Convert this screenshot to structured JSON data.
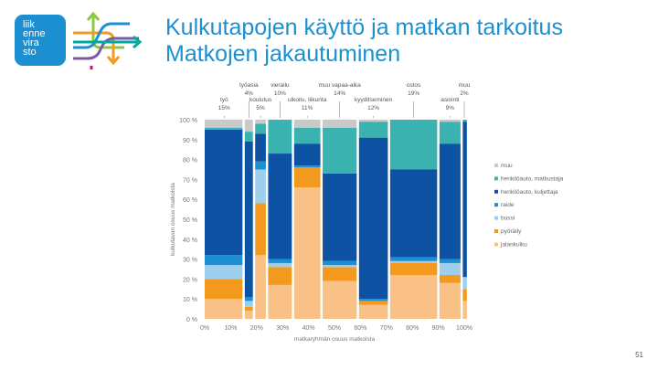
{
  "header": {
    "logo_lines": [
      "liik",
      "enne",
      "vira",
      "sto"
    ],
    "title_line1": "Kulkutapojen käyttö ja matkan tarkoitus",
    "title_line2": "Matkojen jakautuminen"
  },
  "page_number": "51",
  "colors": {
    "muu": "#c9c9c9",
    "henkiloauto_matkustaja": "#3ab3b0",
    "henkiloauto_kuljettaja": "#0d52a3",
    "raide": "#1b8fd1",
    "bussi": "#9ccfee",
    "polkupyora": "#f39a1e",
    "jalankulku": "#f9c185"
  },
  "chart_data": {
    "type": "marimekko",
    "title": "",
    "xlabel": "matkaryhmän osuus matkoista",
    "ylabel": "kulkutavan osuus matkoista",
    "x_ticks": [
      "0%",
      "10%",
      "20%",
      "30%",
      "40%",
      "50%",
      "60%",
      "70%",
      "80%",
      "90%",
      "100%"
    ],
    "y_ticks": [
      "0 %",
      "10 %",
      "20 %",
      "30 %",
      "40 %",
      "50 %",
      "60 %",
      "70 %",
      "80 %",
      "90 %",
      "100 %"
    ],
    "xlim": [
      0,
      100
    ],
    "ylim": [
      0,
      100
    ],
    "legend": [
      "muu",
      "henkilöauto, matkustaja",
      "henkilöauto, kuljettaja",
      "raide",
      "bussi",
      "pyöräily",
      "jalankulku"
    ],
    "series_order": [
      "jalankulku",
      "polkupyora",
      "bussi",
      "raide",
      "henkiloauto_kuljettaja",
      "henkiloauto_matkustaja",
      "muu"
    ],
    "categories": [
      {
        "label": "työ",
        "share_label": "15%",
        "label_row": "low",
        "width": 15,
        "values": {
          "jalankulku": 10,
          "polkupyora": 10,
          "bussi": 7,
          "raide": 5,
          "henkiloauto_kuljettaja": 63,
          "henkiloauto_matkustaja": 1,
          "muu": 4
        }
      },
      {
        "label": "työasia",
        "share_label": "4%",
        "label_row": "high",
        "width": 4,
        "values": {
          "jalankulku": 4,
          "polkupyora": 2,
          "bussi": 3,
          "raide": 2,
          "henkiloauto_kuljettaja": 78,
          "henkiloauto_matkustaja": 5,
          "muu": 6
        }
      },
      {
        "label": "koulutus",
        "share_label": "5%",
        "label_row": "low",
        "width": 5,
        "values": {
          "jalankulku": 32,
          "polkupyora": 26,
          "bussi": 17,
          "raide": 4,
          "henkiloauto_kuljettaja": 14,
          "henkiloauto_matkustaja": 5,
          "muu": 2
        }
      },
      {
        "label": "vierailu",
        "share_label": "10%",
        "label_row": "high",
        "width": 10,
        "values": {
          "jalankulku": 17,
          "polkupyora": 9,
          "bussi": 2,
          "raide": 2,
          "henkiloauto_kuljettaja": 53,
          "henkiloauto_matkustaja": 17,
          "muu": 0
        }
      },
      {
        "label": "ulkoilu, liikunta",
        "share_label": "11%",
        "label_row": "low",
        "width": 11,
        "values": {
          "jalankulku": 66,
          "polkupyora": 10,
          "bussi": 0,
          "raide": 1,
          "henkiloauto_kuljettaja": 11,
          "henkiloauto_matkustaja": 8,
          "muu": 4
        }
      },
      {
        "label": "muu vapaa-aika",
        "share_label": "14%",
        "label_row": "high",
        "width": 14,
        "values": {
          "jalankulku": 19,
          "polkupyora": 7,
          "bussi": 1,
          "raide": 2,
          "henkiloauto_kuljettaja": 44,
          "henkiloauto_matkustaja": 23,
          "muu": 4
        }
      },
      {
        "label": "kyyditseminen",
        "share_label": "12%",
        "label_row": "low",
        "width": 12,
        "values": {
          "jalankulku": 7,
          "polkupyora": 2,
          "bussi": 0,
          "raide": 1,
          "henkiloauto_kuljettaja": 81,
          "henkiloauto_matkustaja": 8,
          "muu": 1
        }
      },
      {
        "label": "ostos",
        "share_label": "19%",
        "label_row": "high",
        "width": 19,
        "values": {
          "jalankulku": 22,
          "polkupyora": 6,
          "bussi": 1,
          "raide": 2,
          "henkiloauto_kuljettaja": 44,
          "henkiloauto_matkustaja": 25,
          "muu": 0
        }
      },
      {
        "label": "asiointi",
        "share_label": "9%",
        "label_row": "low",
        "width": 9,
        "values": {
          "jalankulku": 18,
          "polkupyora": 4,
          "bussi": 6,
          "raide": 2,
          "henkiloauto_kuljettaja": 58,
          "henkiloauto_matkustaja": 11,
          "muu": 1
        }
      },
      {
        "label": "muu",
        "share_label": "2%",
        "label_row": "high",
        "width": 2,
        "values": {
          "jalankulku": 9,
          "polkupyora": 6,
          "bussi": 6,
          "raide": 0,
          "henkiloauto_kuljettaja": 78,
          "henkiloauto_matkustaja": 1,
          "muu": 0
        }
      }
    ]
  }
}
